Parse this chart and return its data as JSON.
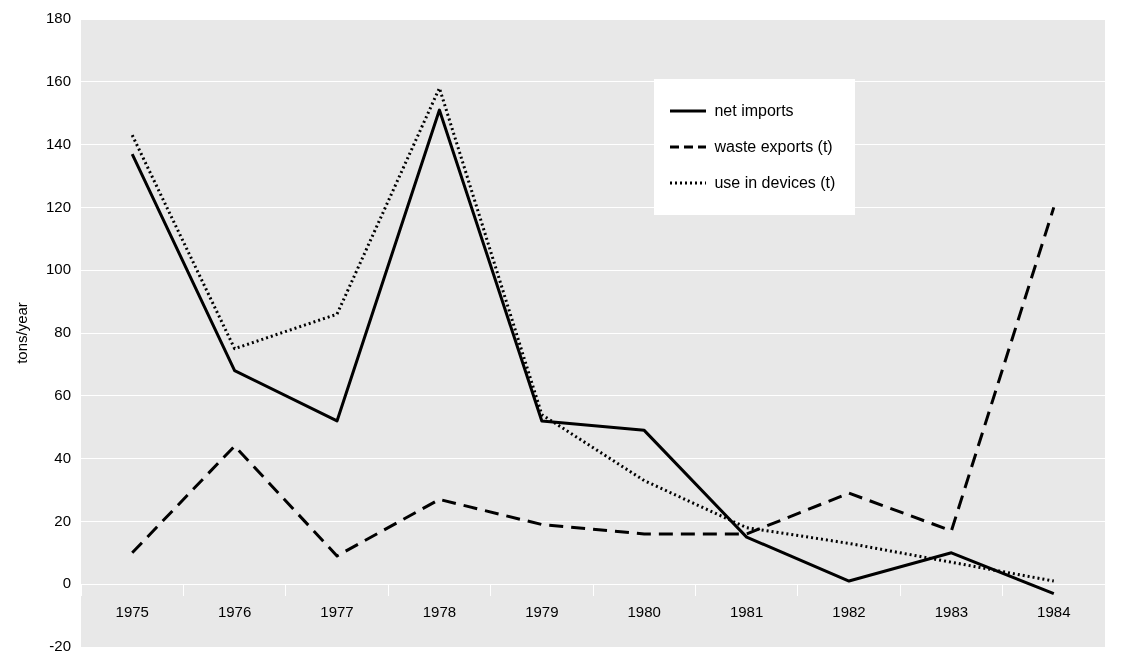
{
  "chart_data": {
    "type": "line",
    "ylabel": "tons/year",
    "categories": [
      "1975",
      "1976",
      "1977",
      "1978",
      "1979",
      "1980",
      "1981",
      "1982",
      "1983",
      "1984"
    ],
    "series": [
      {
        "name": "net imports",
        "color": "#000000",
        "line_style": "solid",
        "values": [
          137,
          68,
          52,
          151,
          52,
          49,
          15,
          1,
          10,
          -3
        ]
      },
      {
        "name": "waste exports (t)",
        "color": "#000000",
        "line_style": "dashed",
        "values": [
          10,
          44,
          9,
          27,
          19,
          16,
          16,
          29,
          17,
          120
        ]
      },
      {
        "name": "use in devices (t)",
        "color": "#000000",
        "line_style": "dotted",
        "values": [
          143,
          75,
          86,
          158,
          54,
          33,
          18,
          13,
          7,
          1
        ]
      }
    ],
    "ylim": [
      -20,
      180
    ],
    "yticks": [
      -20,
      0,
      20,
      40,
      60,
      80,
      100,
      120,
      140,
      160,
      180
    ],
    "grid": "y",
    "legend": "top right",
    "marker": "none"
  }
}
